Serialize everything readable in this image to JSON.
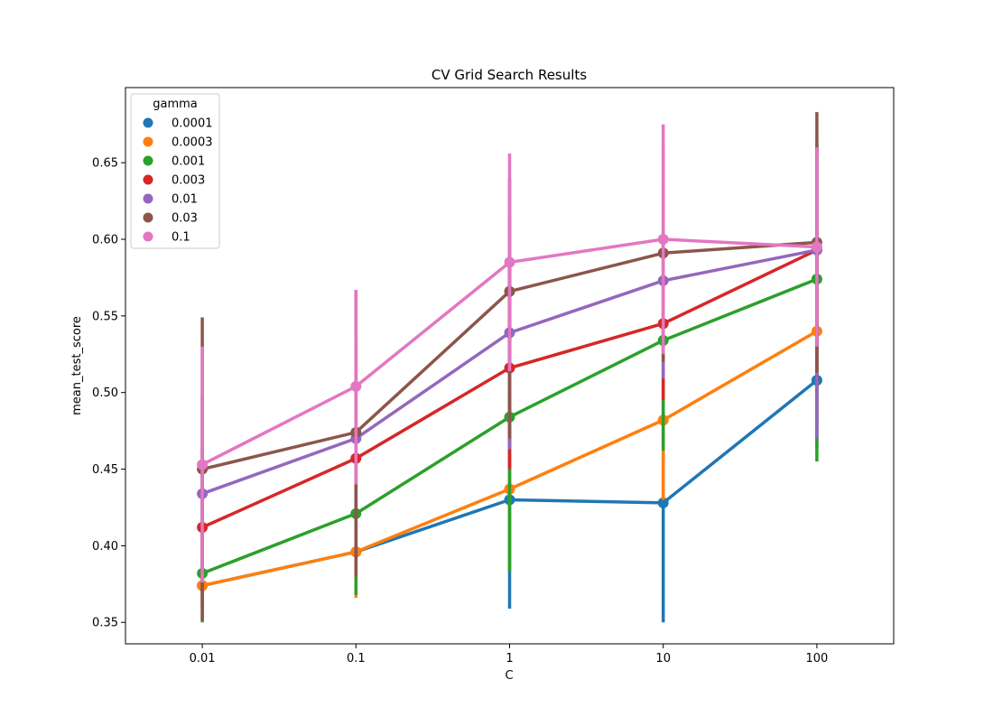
{
  "chart_data": {
    "type": "line",
    "title": "CV Grid Search Results",
    "xlabel": "C",
    "ylabel": "mean_test_score",
    "categories": [
      "0.01",
      "0.1",
      "1",
      "10",
      "100"
    ],
    "ylim": [
      0.336,
      0.699
    ],
    "yticks": [
      "0.35",
      "0.40",
      "0.45",
      "0.50",
      "0.55",
      "0.60",
      "0.65"
    ],
    "grid": false,
    "legend": {
      "title": "gamma",
      "position": "top-left"
    },
    "series": [
      {
        "name": "0.0001",
        "color": "#1f77b4",
        "values": [
          0.374,
          0.396,
          0.43,
          0.428,
          0.508
        ],
        "err_low": [
          0.374,
          0.396,
          0.359,
          0.35,
          0.463
        ],
        "err_high": [
          0.374,
          0.396,
          0.5,
          0.506,
          0.553
        ]
      },
      {
        "name": "0.0003",
        "color": "#ff7f0e",
        "values": [
          0.374,
          0.396,
          0.437,
          0.482,
          0.54
        ],
        "err_low": [
          0.374,
          0.366,
          0.384,
          0.43,
          0.48
        ],
        "err_high": [
          0.374,
          0.426,
          0.49,
          0.534,
          0.6
        ]
      },
      {
        "name": "0.001",
        "color": "#2ca02c",
        "values": [
          0.382,
          0.421,
          0.484,
          0.534,
          0.574
        ],
        "err_low": [
          0.35,
          0.368,
          0.383,
          0.462,
          0.455
        ],
        "err_high": [
          0.414,
          0.474,
          0.585,
          0.606,
          0.663
        ]
      },
      {
        "name": "0.003",
        "color": "#d62728",
        "values": [
          0.412,
          0.457,
          0.516,
          0.545,
          0.593
        ],
        "err_low": [
          0.36,
          0.38,
          0.45,
          0.495,
          0.5
        ],
        "err_high": [
          0.464,
          0.534,
          0.582,
          0.595,
          0.66
        ]
      },
      {
        "name": "0.01",
        "color": "#9467bd",
        "values": [
          0.434,
          0.47,
          0.539,
          0.573,
          0.593
        ],
        "err_low": [
          0.37,
          0.39,
          0.463,
          0.509,
          0.47
        ],
        "err_high": [
          0.498,
          0.55,
          0.615,
          0.637,
          0.66
        ]
      },
      {
        "name": "0.03",
        "color": "#8c564b",
        "values": [
          0.45,
          0.474,
          0.566,
          0.591,
          0.598
        ],
        "err_low": [
          0.351,
          0.38,
          0.47,
          0.52,
          0.513
        ],
        "err_high": [
          0.549,
          0.567,
          0.64,
          0.662,
          0.683
        ]
      },
      {
        "name": "0.1",
        "color": "#e377c2",
        "values": [
          0.453,
          0.504,
          0.585,
          0.6,
          0.595
        ],
        "err_low": [
          0.376,
          0.44,
          0.514,
          0.525,
          0.53
        ],
        "err_high": [
          0.53,
          0.567,
          0.656,
          0.675,
          0.66
        ]
      }
    ]
  }
}
